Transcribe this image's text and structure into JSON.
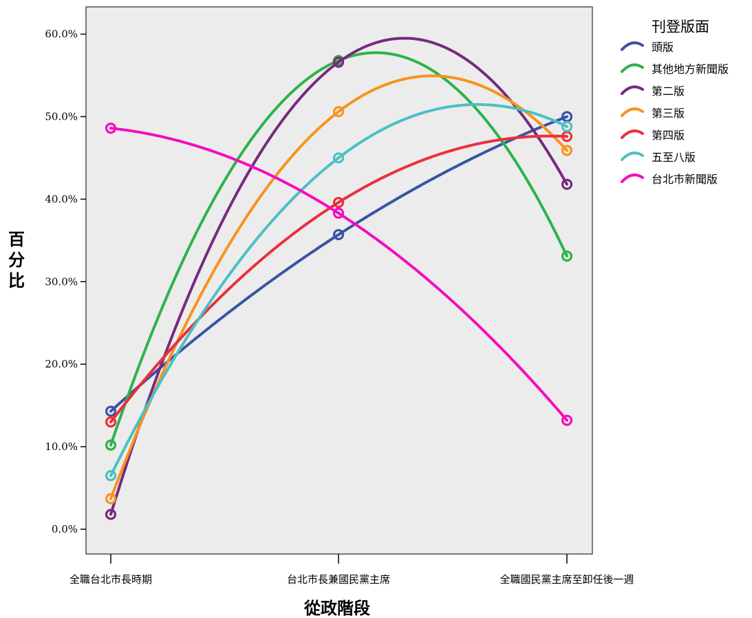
{
  "chart_data": {
    "type": "line",
    "title": "",
    "xlabel": "從政階段",
    "ylabel": "百分比",
    "categories": [
      "全職台北市長時期",
      "台北市長兼國民黨主席",
      "全職國民黨主席至卸任後一週"
    ],
    "y_ticks": [
      "0.0%",
      "10.0%",
      "20.0%",
      "30.0%",
      "40.0%",
      "50.0%",
      "60.0%"
    ],
    "ylim": [
      -3,
      63.3
    ],
    "grid": false,
    "legend_title": "刊登版面",
    "legend_position": "right",
    "series": [
      {
        "name": "頭版",
        "color": "#3953a4",
        "values": [
          14.3,
          35.7,
          50.0
        ]
      },
      {
        "name": "其他地方新聞版",
        "color": "#2db34a",
        "values": [
          10.2,
          56.8,
          33.1
        ]
      },
      {
        "name": "第二版",
        "color": "#772a7e",
        "values": [
          1.8,
          56.6,
          41.8
        ]
      },
      {
        "name": "第三版",
        "color": "#f7941d",
        "values": [
          3.7,
          50.6,
          45.9
        ]
      },
      {
        "name": "第四版",
        "color": "#ea2f3d",
        "values": [
          13.0,
          39.6,
          47.6
        ]
      },
      {
        "name": "五至八版",
        "color": "#4dbfc3",
        "values": [
          6.5,
          45.0,
          48.8
        ]
      },
      {
        "name": "台北市新聞版",
        "color": "#f50dbd",
        "values": [
          48.6,
          38.3,
          13.2
        ]
      }
    ]
  }
}
